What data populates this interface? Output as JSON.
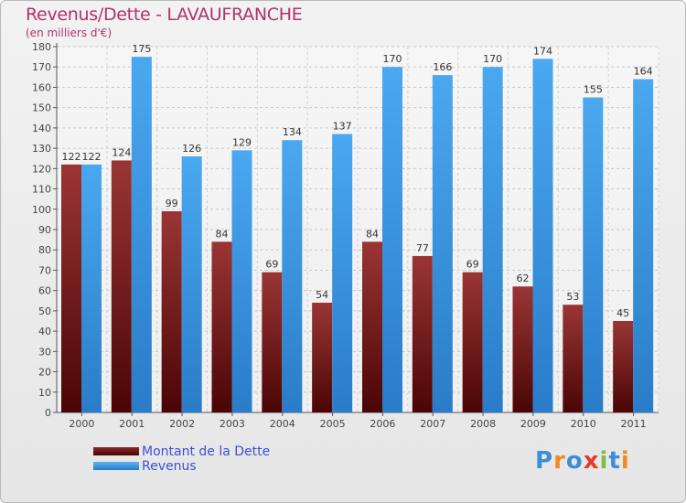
{
  "header": {
    "title": "Revenus/Dette - LAVAUFRANCHE",
    "subtitle": "(en milliers d'€)"
  },
  "logo": {
    "text": "Proxiti",
    "colors": [
      "#3b8fd6",
      "#f28a1f",
      "#3b8fd6",
      "#e8392b",
      "#7cc142",
      "#3b8fd6",
      "#f28a1f"
    ]
  },
  "legend": {
    "items": [
      {
        "label": "Montant de la Dette",
        "color": "#6e1515"
      },
      {
        "label": "Revenus",
        "color": "#3f9ee8"
      }
    ]
  },
  "chart_data": {
    "type": "bar",
    "categories": [
      "2000",
      "2001",
      "2002",
      "2003",
      "2004",
      "2005",
      "2006",
      "2007",
      "2008",
      "2009",
      "2010",
      "2011"
    ],
    "series": [
      {
        "name": "Montant de la Dette",
        "color": "#7a1d1d",
        "values": [
          122,
          124,
          99,
          84,
          69,
          54,
          84,
          77,
          69,
          62,
          53,
          45
        ]
      },
      {
        "name": "Revenus",
        "color": "#3f9ee8",
        "values": [
          122,
          175,
          126,
          129,
          134,
          137,
          170,
          166,
          170,
          174,
          155,
          164
        ]
      }
    ],
    "ylim": [
      0,
      180
    ],
    "ytick_step": 10,
    "grid": true,
    "legend_position": "bottom-left"
  }
}
